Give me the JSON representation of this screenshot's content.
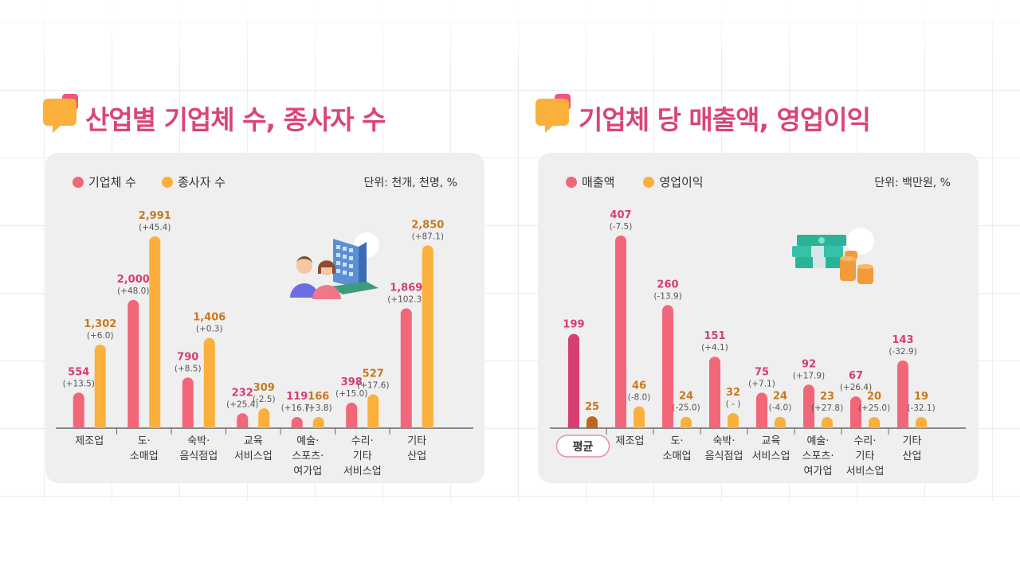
{
  "colors": {
    "title": "#d9457a",
    "primary": "#f2667a",
    "secondary": "#fbb03b",
    "avg_primary": "#d63d72",
    "avg_secondary": "#c0651a",
    "value_primary": "#d63d72",
    "value_secondary": "#c9781e"
  },
  "left": {
    "title": "산업별 기업체 수, 종사자 수",
    "unit": "단위: 천개, 천명, %",
    "icon": "people-building-illustration"
  },
  "right": {
    "title": "기업체 당 매출액, 영업이익",
    "unit": "단위: 백만원, %",
    "icon": "money-coins-illustration"
  },
  "chart_data": [
    {
      "type": "bar",
      "categories": [
        [
          "제조업"
        ],
        [
          "도·",
          "소매업"
        ],
        [
          "숙박·",
          "음식점업"
        ],
        [
          "교육",
          "서비스업"
        ],
        [
          "예술·",
          "스포츠·",
          "여가업"
        ],
        [
          "수리·",
          "기타",
          "서비스업"
        ],
        [
          "기타",
          "산업"
        ]
      ],
      "series": [
        {
          "name": "기업체 수",
          "values": [
            554,
            2000,
            790,
            232,
            119,
            398,
            1869
          ],
          "labels": [
            "554",
            "2,000",
            "790",
            "232",
            "119",
            "398",
            "1,869"
          ],
          "changes": [
            "(+13.5)",
            "(+48.0)",
            "(+8.5)",
            "(+25.4)",
            "(+16.7)",
            "(+15.0)",
            "(+102.3)"
          ]
        },
        {
          "name": "종사자 수",
          "values": [
            1302,
            2991,
            1406,
            309,
            166,
            527,
            2850
          ],
          "labels": [
            "1,302",
            "2,991",
            "1,406",
            "309",
            "166",
            "527",
            "2,850"
          ],
          "changes": [
            "(+6.0)",
            "(+45.4)",
            "(+0.3)",
            "(-2.5)",
            "(+3.8)",
            "(+17.6)",
            "(+87.1)"
          ]
        }
      ],
      "ylim": [
        0,
        2991
      ],
      "legend": "top-left",
      "grid": false
    },
    {
      "type": "bar",
      "categories": [
        [
          "평균"
        ],
        [
          "제조업"
        ],
        [
          "도·",
          "소매업"
        ],
        [
          "숙박·",
          "음식점업"
        ],
        [
          "교육",
          "서비스업"
        ],
        [
          "예술·",
          "스포츠·",
          "여가업"
        ],
        [
          "수리·",
          "기타",
          "서비스업"
        ],
        [
          "기타",
          "산업"
        ]
      ],
      "highlight_category": "평균",
      "series": [
        {
          "name": "매출액",
          "values": [
            199,
            407,
            260,
            151,
            75,
            92,
            67,
            143
          ],
          "labels": [
            "199",
            "407",
            "260",
            "151",
            "75",
            "92",
            "67",
            "143"
          ],
          "changes": [
            "",
            "(-7.5)",
            "(-13.9)",
            "(+4.1)",
            "(+7.1)",
            "(+17.9)",
            "(+26.4)",
            "(-32.9)"
          ]
        },
        {
          "name": "영업이익",
          "values": [
            25,
            46,
            24,
            32,
            24,
            23,
            20,
            19
          ],
          "labels": [
            "25",
            "46",
            "24",
            "32",
            "24",
            "23",
            "20",
            "19"
          ],
          "changes": [
            "",
            "(-8.0)",
            "(-25.0)",
            "( - )",
            "(-4.0)",
            "(+27.8)",
            "(+25.0)",
            "(-32.1)"
          ]
        }
      ],
      "ylim": [
        0,
        407
      ],
      "legend": "top-left",
      "grid": false
    }
  ]
}
